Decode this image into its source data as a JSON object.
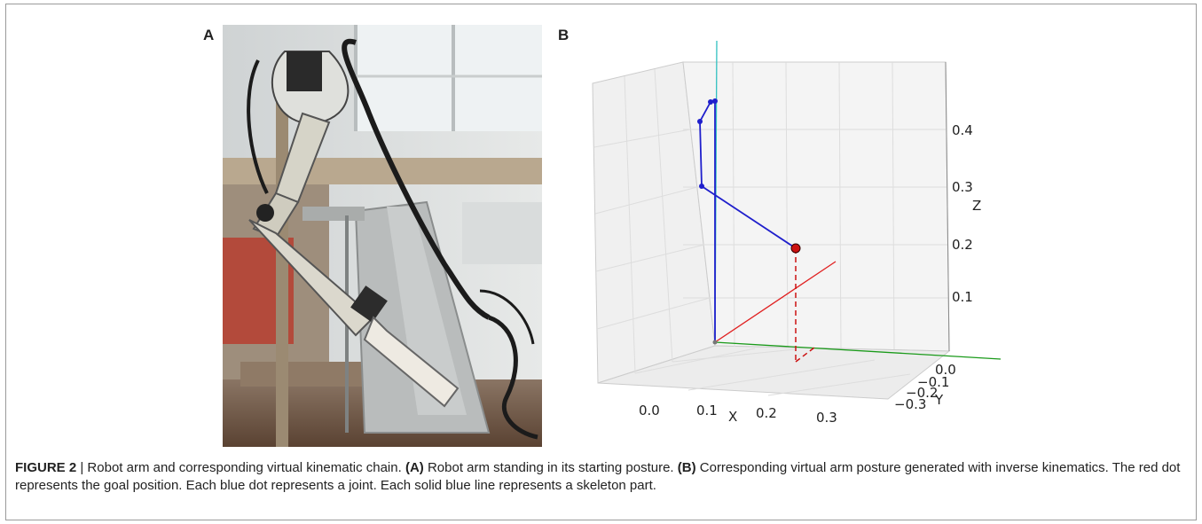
{
  "figure": {
    "panel_a_label": "A",
    "panel_b_label": "B",
    "caption": {
      "figure_number": "FIGURE 2",
      "title": "Robot arm and corresponding virtual kinematic chain.",
      "part_a_tag": "(A)",
      "part_a_text": "Robot arm standing in its starting posture.",
      "part_b_tag": "(B)",
      "part_b_text": "Corresponding virtual arm posture generated with inverse kinematics. The red dot represents the goal position. Each blue dot represents a joint. Each solid blue line represents a skeleton part."
    }
  },
  "chart_data": {
    "type": "scatter",
    "projection": "3d",
    "grid": true,
    "axes": {
      "x": {
        "label": "X",
        "ticks": [
          "0.0",
          "0.1",
          "0.2",
          "0.3"
        ]
      },
      "y": {
        "label": "Y",
        "ticks": [
          "0.0",
          "−0.1",
          "−0.2",
          "−0.3"
        ]
      },
      "z": {
        "label": "Z",
        "ticks": [
          "0.1",
          "0.2",
          "0.3",
          "0.4"
        ]
      }
    },
    "colors": {
      "arm": "#1f1fcc",
      "goal": "#cc1111",
      "x_axis": "#e02020",
      "y_axis": "#1a9a1a",
      "z_axis": "#30c0c0"
    },
    "joints": [
      {
        "z": 0.0
      },
      {
        "z": 0.45
      },
      {
        "z": 0.45
      },
      {
        "z": 0.42
      },
      {
        "z": 0.29
      },
      {
        "z": 0.18
      }
    ],
    "goal": {
      "z": 0.18
    }
  }
}
